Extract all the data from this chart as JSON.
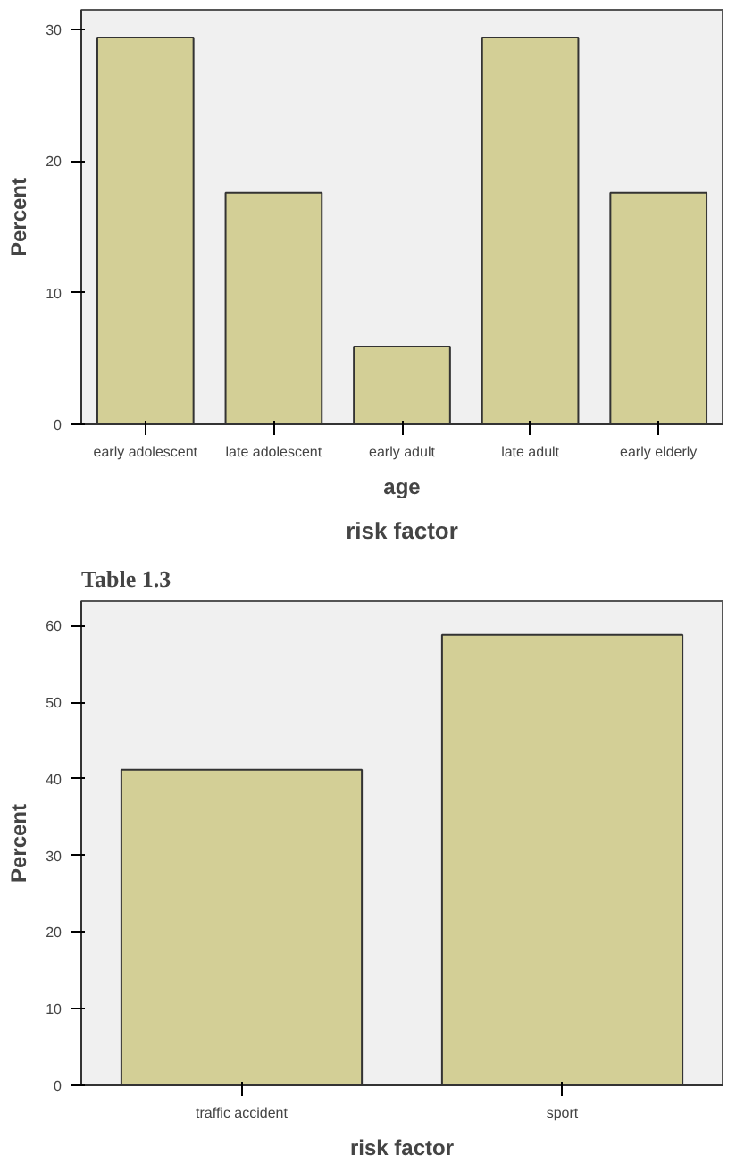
{
  "chart_data": [
    {
      "type": "bar",
      "categories": [
        "early adolescent",
        "late adolescent",
        "early adult",
        "late adult",
        "early elderly"
      ],
      "values": [
        29.4,
        17.6,
        5.9,
        29.4,
        17.6
      ],
      "color": "#d3cf96",
      "xlabel": "age",
      "ylabel": "Percent",
      "ylim": [
        0,
        31.5
      ],
      "yticks": [
        0,
        10,
        20,
        30
      ],
      "grid": false,
      "legend": false
    },
    {
      "type": "bar",
      "title": "risk factor",
      "annotations": [
        "Table 1.3"
      ],
      "categories": [
        "traffic accident",
        "sport"
      ],
      "values": [
        41.2,
        58.8
      ],
      "color": "#d3cf96",
      "xlabel": "risk factor",
      "ylabel": "Percent",
      "ylim": [
        0,
        63.2
      ],
      "yticks": [
        0,
        10,
        20,
        30,
        40,
        50,
        60
      ],
      "grid": false,
      "legend": false
    }
  ]
}
